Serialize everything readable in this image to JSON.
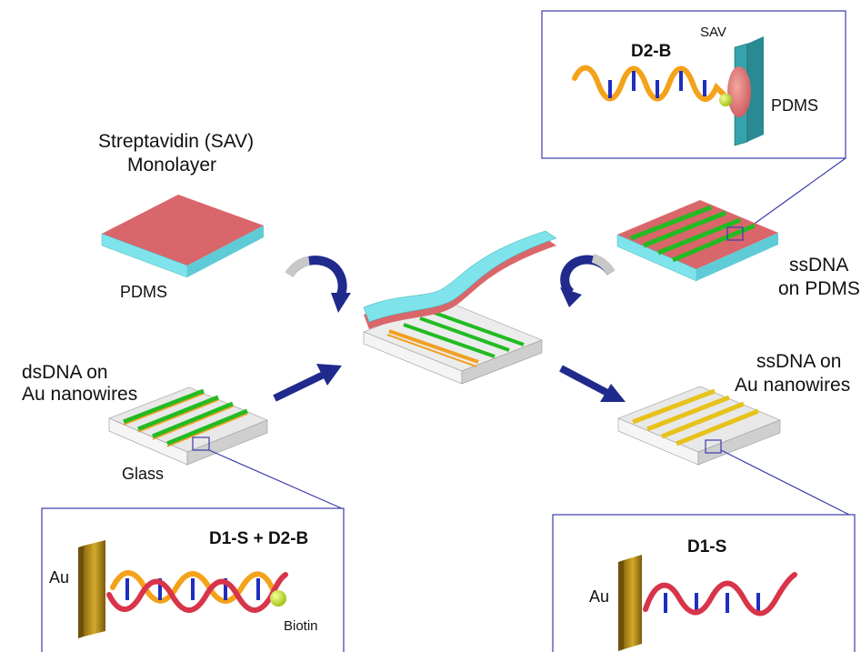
{
  "labels": {
    "sav_monolayer_line1": "Streptavidin (SAV)",
    "sav_monolayer_line2": "Monolayer",
    "pdms_left": "PDMS",
    "dsdna_line1": "dsDNA on",
    "dsdna_line2": "Au nanowires",
    "glass": "Glass",
    "ssdna_pdms_line1": "ssDNA",
    "ssdna_pdms_line2": "on PDMS",
    "ssdna_au_line1": "ssDNA on",
    "ssdna_au_line2": "Au nanowires"
  },
  "top_inset": {
    "title": "D2-B",
    "sav": "SAV",
    "pdms": "PDMS"
  },
  "bottom_left_inset": {
    "title": "D1-S + D2-B",
    "au": "Au",
    "biotin": "Biotin"
  },
  "bottom_right_inset": {
    "title": "D1-S",
    "au": "Au"
  },
  "colors": {
    "sav_pink": "#d9666a",
    "pdms_cyan": "#7fe3ec",
    "stripe_green": "#22bb22",
    "stripe_orange": "#f0a020",
    "nanowire_gold": "#e7c21a",
    "glass_gray": "#e6e6e6",
    "arrow_navy": "#1f2a8c",
    "callout_blue": "#3b3bab",
    "dna_red": "#d8344a",
    "dna_orange": "#f4a21a",
    "base_blue": "#1f2fbf",
    "biotin_green": "#c7e826",
    "au_brown": "#a9841a"
  }
}
